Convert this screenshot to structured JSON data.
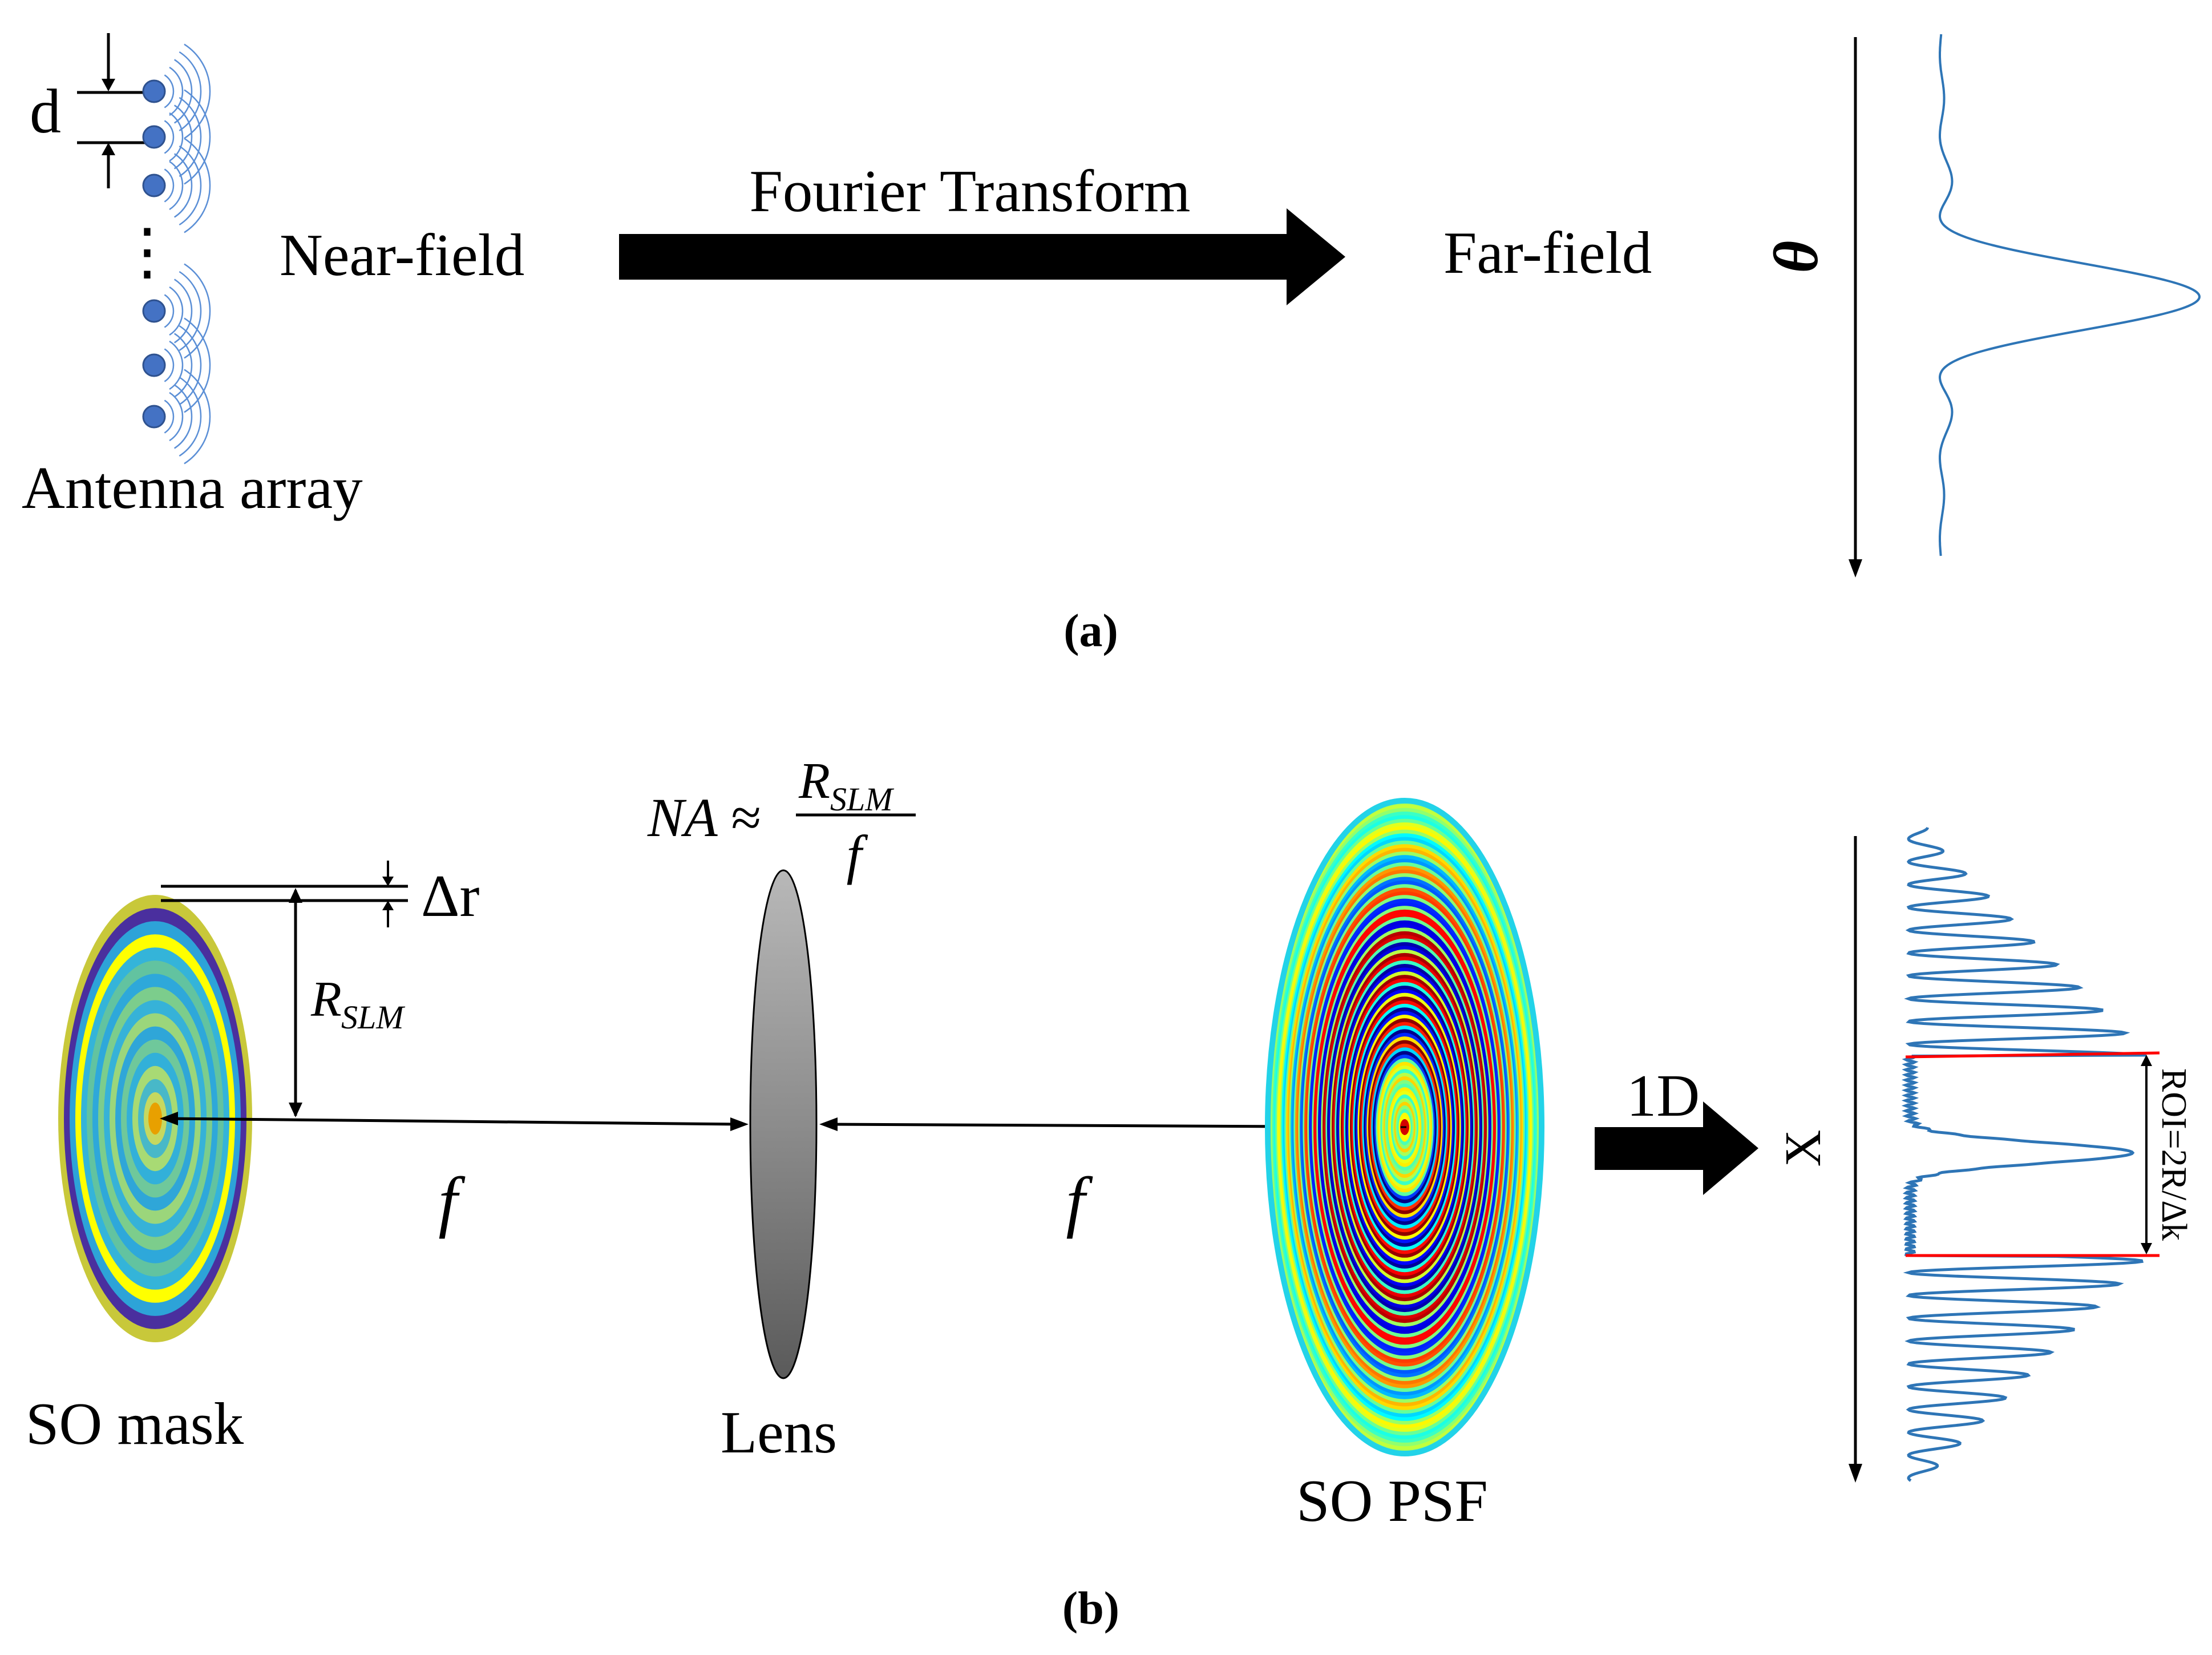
{
  "panel_a": {
    "label": "(a)",
    "spacing_label": "d",
    "vertical_ellipsis": "⋮",
    "antenna_label": "Antenna array",
    "near_field_label": "Near-field",
    "transform_label": "Fourier Transform",
    "far_field_label": "Far-field",
    "angle_axis_label": "θ",
    "dot_color": "#4472c4",
    "wave_color": "#5b8fd6",
    "pattern_color": "#2e75b6"
  },
  "panel_b": {
    "label": "(b)",
    "na_lhs": "NA ≈",
    "na_numerator": "R",
    "na_numerator_sub": "SLM",
    "na_denominator": "f",
    "delta_r_label": "Δr",
    "radius_label": "R",
    "radius_sub": "SLM",
    "focal_left": "f",
    "focal_right": "f",
    "mask_label": "SO mask",
    "lens_label": "Lens",
    "psf_label": "SO PSF",
    "oned_label": "1D",
    "x_axis_label": "X",
    "roi_label": "ROI=2R/Δk",
    "profile_color": "#2e75b6",
    "roi_line_color": "#ff0000"
  }
}
